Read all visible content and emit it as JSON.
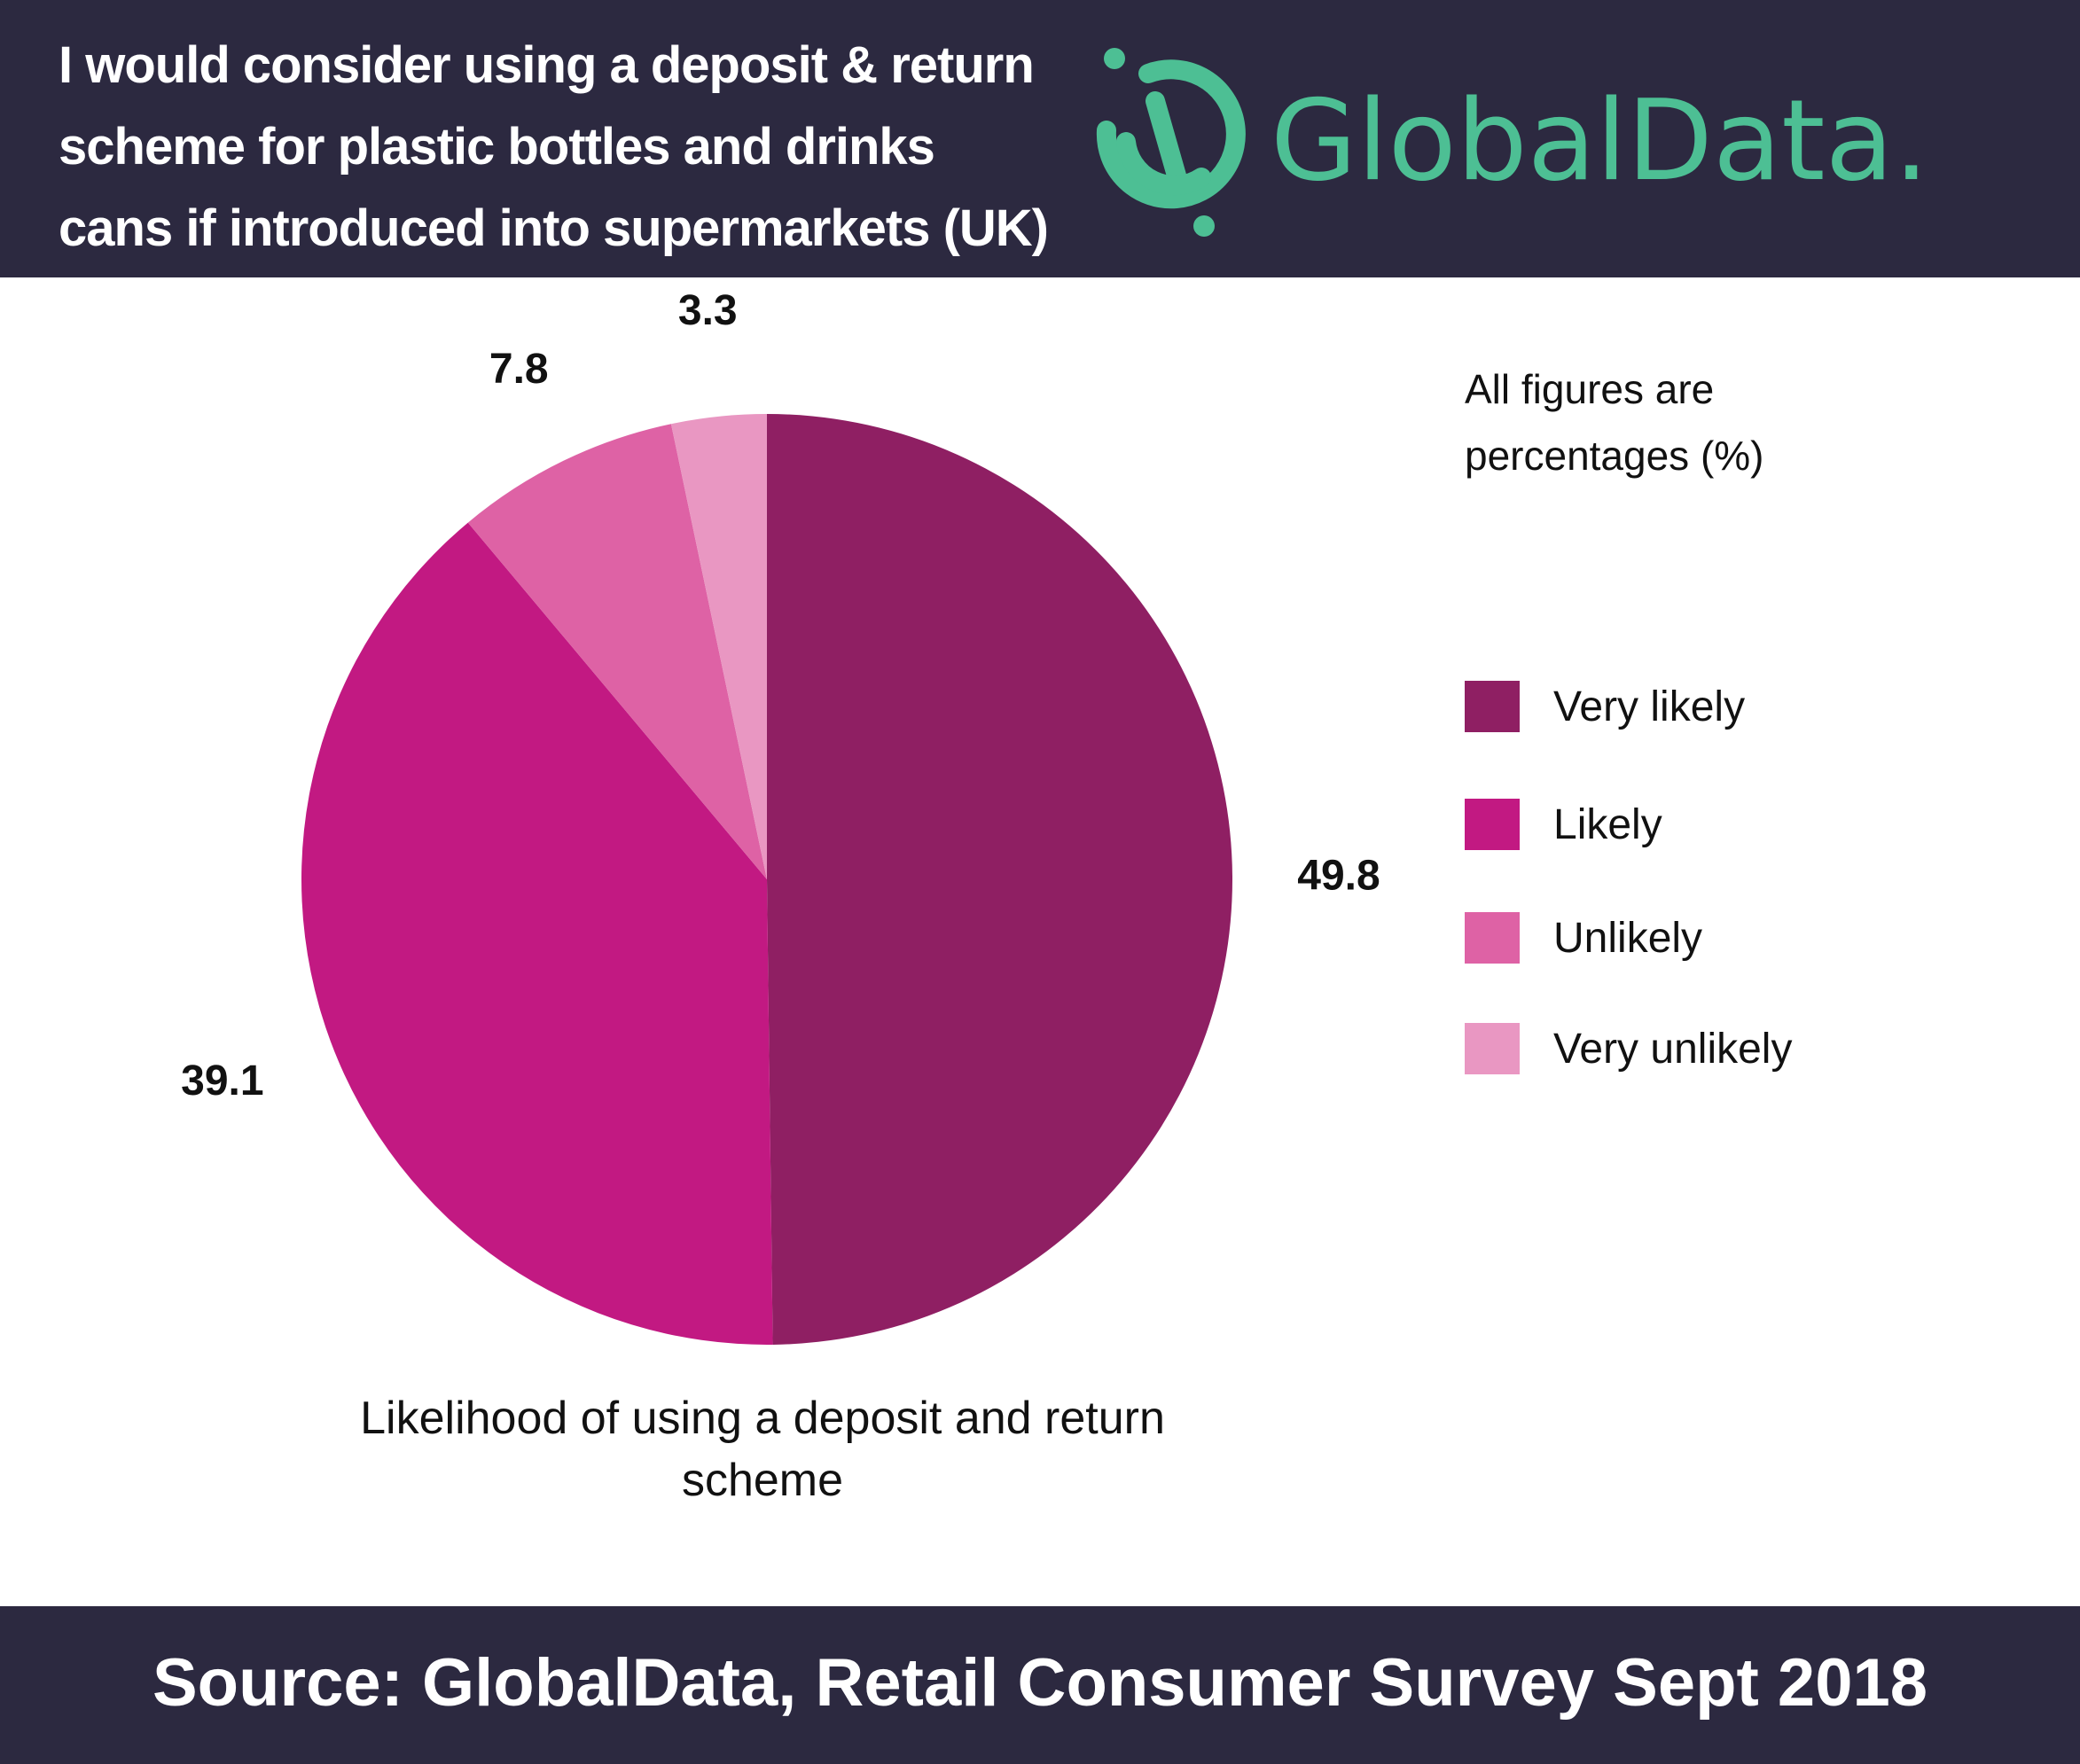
{
  "header": {
    "title": "I would consider using a deposit & return\nscheme for plastic bottles and drinks\ncans if introduced into supermarkets (UK)",
    "logo_text": "GlobalData."
  },
  "note": "All figures are\npercentages (%)",
  "footer": {
    "source": "Source: GlobalData, Retail Consumer Survey Sept 2018"
  },
  "colors": {
    "header_bg": "#2c2940",
    "logo": "#4dbf94",
    "very_likely": "#8f1f63",
    "likely": "#c21982",
    "unlikely": "#de62a5",
    "very_unlikely": "#e997c2"
  },
  "chart_data": {
    "type": "pie",
    "title": "Likelihood of using a deposit and return\nscheme",
    "unit": "%",
    "start_angle_deg": 0,
    "direction": "clockwise",
    "slices": [
      {
        "label": "Very likely",
        "value": 49.8,
        "value_label": "49.8",
        "color": "#8f1f63"
      },
      {
        "label": "Likely",
        "value": 39.1,
        "value_label": "39.1",
        "color": "#c21982"
      },
      {
        "label": "Unlikely",
        "value": 7.8,
        "value_label": "7.8",
        "color": "#de62a5"
      },
      {
        "label": "Very unlikely",
        "value": 3.3,
        "value_label": "3.3",
        "color": "#e997c2"
      }
    ],
    "legend_position": "right"
  }
}
